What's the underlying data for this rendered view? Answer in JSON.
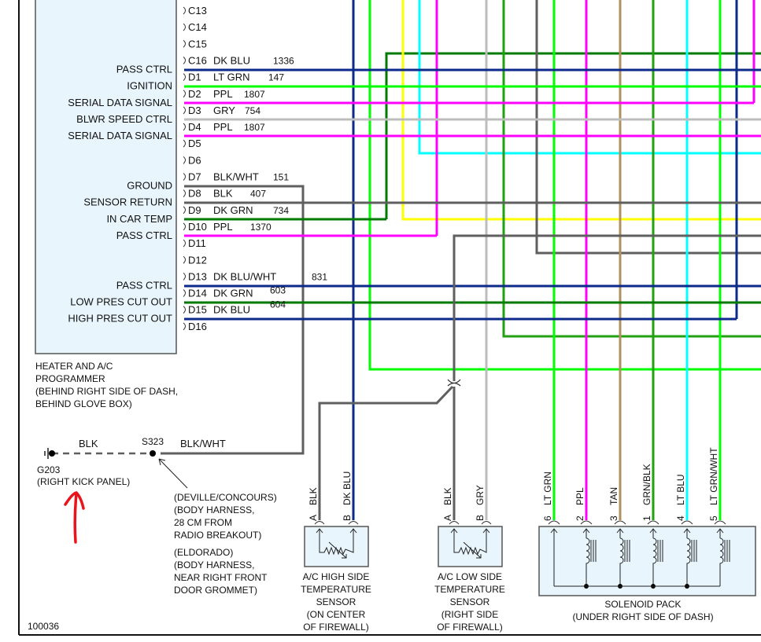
{
  "colors": {
    "dk_blu": "#0b2a8a",
    "lt_grn": "#00ff00",
    "ppl": "#ff00ff",
    "gry": "#bdbdbd",
    "blk": "#5f5f5f",
    "dk_grn": "#007a00",
    "grn": "#22a010",
    "yel": "#ffff00",
    "lt_blu": "#00ffff",
    "tan": "#b09060",
    "box_fill": "#e8f5fc",
    "annotation": "#e8161c"
  },
  "programmer": {
    "pins": [
      "C13",
      "C14",
      "C15",
      "C16",
      "D1",
      "D2",
      "D3",
      "D4",
      "D5",
      "D6",
      "D7",
      "D8",
      "D9",
      "D10",
      "D11",
      "D12",
      "D13",
      "D14",
      "D15",
      "D16"
    ],
    "functions": [
      {
        "pin": "C16",
        "label": "PASS CTRL",
        "color": "DK BLU",
        "circuit": "1336"
      },
      {
        "pin": "D1",
        "label": "IGNITION",
        "color": "LT GRN",
        "circuit": "147"
      },
      {
        "pin": "D2",
        "label": "SERIAL DATA SIGNAL",
        "color": "PPL",
        "circuit": "1807"
      },
      {
        "pin": "D3",
        "label": "BLWR SPEED CTRL",
        "color": "GRY",
        "circuit": "754"
      },
      {
        "pin": "D4",
        "label": "SERIAL DATA SIGNAL",
        "color": "PPL",
        "circuit": "1807"
      },
      {
        "pin": "D7",
        "label": "GROUND",
        "color": "BLK/WHT",
        "circuit": "151"
      },
      {
        "pin": "D8",
        "label": "SENSOR RETURN",
        "color": "BLK",
        "circuit": "407"
      },
      {
        "pin": "D9",
        "label": "IN CAR TEMP",
        "color": "DK GRN",
        "circuit": "734"
      },
      {
        "pin": "D10",
        "label": "PASS CTRL",
        "color": "PPL",
        "circuit": "1370"
      },
      {
        "pin": "D13",
        "label": "PASS CTRL",
        "color": "DK BLU/WHT",
        "circuit": "831"
      },
      {
        "pin": "D14",
        "label": "LOW PRES CUT OUT",
        "color": "DK GRN",
        "circuit": "603"
      },
      {
        "pin": "D15",
        "label": "HIGH PRES CUT OUT",
        "color": "DK BLU",
        "circuit": "604"
      }
    ],
    "caption": [
      "HEATER AND A/C",
      "PROGRAMMER",
      "(BEHIND RIGHT SIDE OF DASH,",
      "BEHIND GLOVE BOX)"
    ]
  },
  "ground": {
    "wire_left": "BLK",
    "splice": "S323",
    "wire_right": "BLK/WHT",
    "caption": [
      "G203",
      "(RIGHT KICK PANEL)"
    ],
    "splice_note": [
      "(DEVILLE/CONCOURS)",
      "(BODY HARNESS,",
      "28 CM FROM",
      "RADIO BREAKOUT)",
      "(ELDORADO)",
      "(BODY HARNESS,",
      "NEAR RIGHT FRONT",
      "DOOR GROMMET)"
    ]
  },
  "high_sensor": {
    "pins": [
      {
        "pin": "A",
        "color": "BLK"
      },
      {
        "pin": "B",
        "color": "DK BLU"
      }
    ],
    "caption": [
      "A/C HIGH SIDE",
      "TEMPERATURE",
      "SENSOR",
      "(ON CENTER",
      "OF FIREWALL)"
    ]
  },
  "low_sensor": {
    "pins": [
      {
        "pin": "A",
        "color": "BLK"
      },
      {
        "pin": "B",
        "color": "GRY"
      }
    ],
    "caption": [
      "A/C LOW SIDE",
      "TEMPERATURE",
      "SENSOR",
      "(RIGHT SIDE",
      "OF FIREWALL)"
    ]
  },
  "solenoid": {
    "pins": [
      {
        "pin": "6",
        "color": "LT GRN"
      },
      {
        "pin": "2",
        "color": "PPL"
      },
      {
        "pin": "3",
        "color": "TAN"
      },
      {
        "pin": "1",
        "color": "GRN/BLK"
      },
      {
        "pin": "4",
        "color": "LT BLU"
      },
      {
        "pin": "5",
        "color": "LT GRN/WHT"
      }
    ],
    "caption": [
      "SOLENOID PACK",
      "(UNDER RIGHT SIDE OF DASH)"
    ]
  },
  "figure_id": "100036"
}
